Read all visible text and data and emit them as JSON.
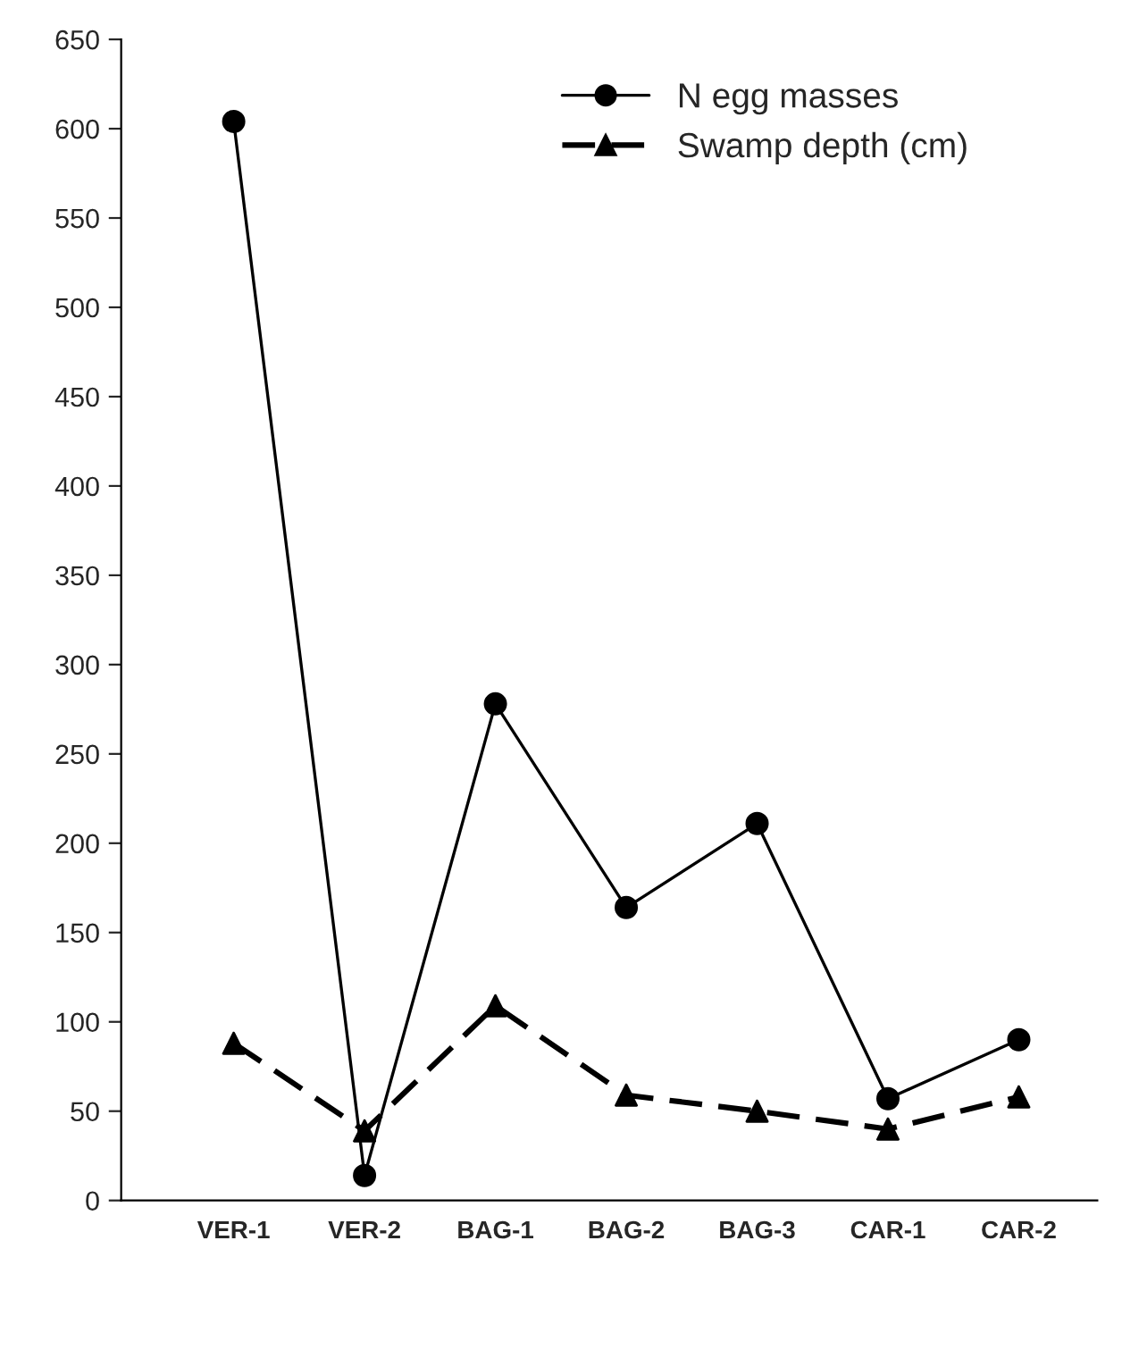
{
  "chart_data": {
    "type": "line",
    "categories": [
      "VER-1",
      "VER-2",
      "BAG-1",
      "BAG-2",
      "BAG-3",
      "CAR-1",
      "CAR-2"
    ],
    "series": [
      {
        "name": "N egg masses",
        "color": "#000000",
        "marker": "circle",
        "line_style": "solid",
        "values": [
          604,
          14,
          278,
          164,
          211,
          57,
          90
        ]
      },
      {
        "name": "Swamp depth (cm)",
        "color": "#000000",
        "marker": "triangle",
        "line_style": "dashed",
        "values": [
          88,
          39,
          109,
          59,
          50,
          40,
          58
        ]
      }
    ],
    "ylim": [
      0,
      650
    ],
    "yticks": [
      0,
      50,
      100,
      150,
      200,
      250,
      300,
      350,
      400,
      450,
      500,
      550,
      600,
      650
    ],
    "grid": false,
    "legend": "top right"
  }
}
